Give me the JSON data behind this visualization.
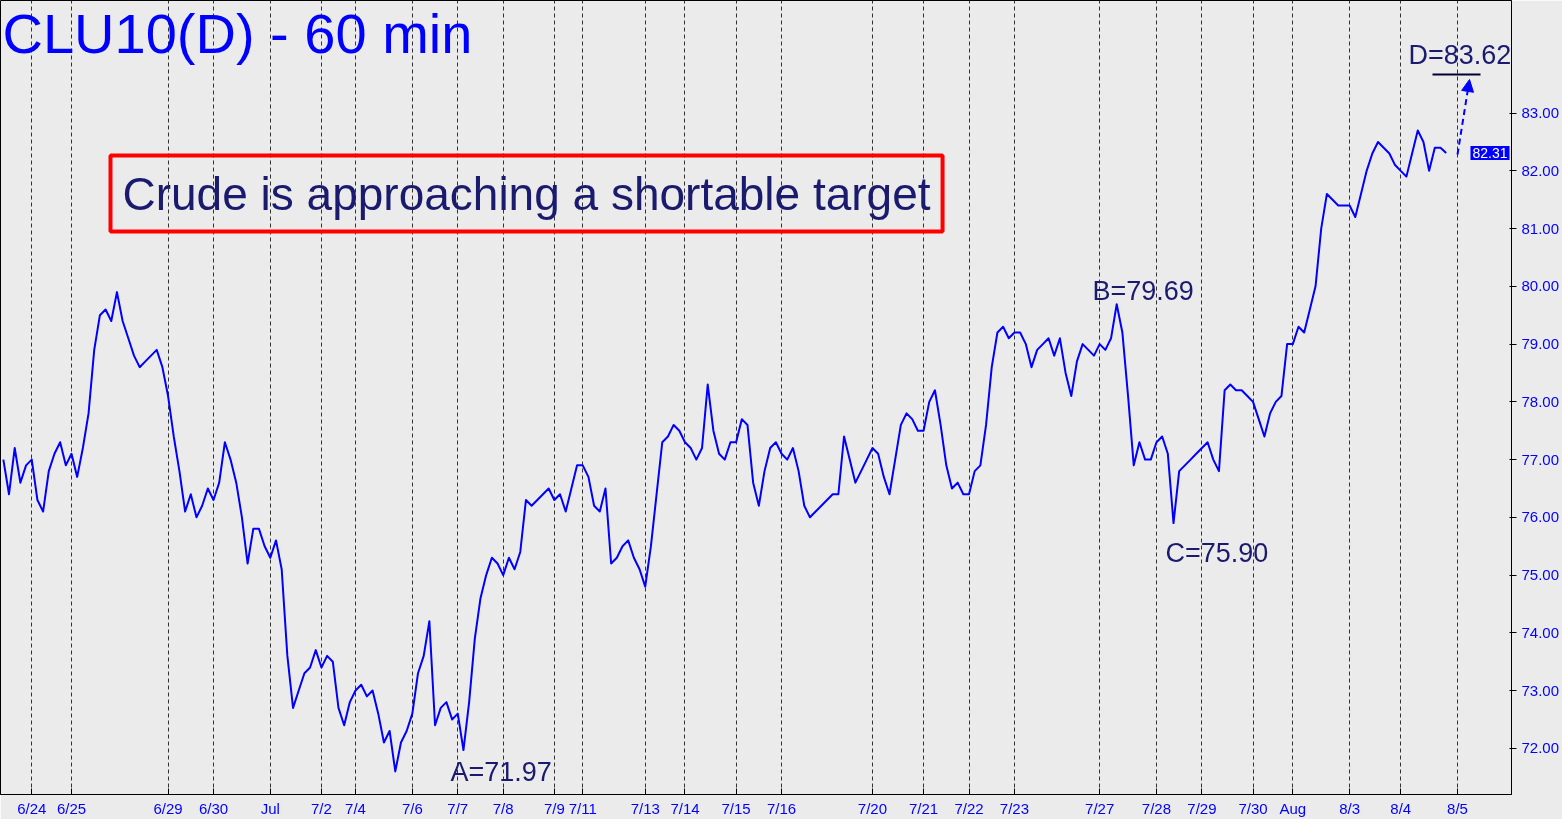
{
  "chart_data": {
    "type": "line",
    "title": "CLU10(D) - 60 min",
    "categories": [
      null,
      null,
      null,
      null,
      null,
      "6/24",
      null,
      null,
      null,
      null,
      null,
      null,
      "6/25",
      null,
      null,
      null,
      null,
      null,
      null,
      null,
      null,
      null,
      null,
      null,
      null,
      null,
      null,
      null,
      null,
      "6/29",
      null,
      null,
      null,
      null,
      null,
      null,
      null,
      "6/30",
      null,
      null,
      null,
      null,
      null,
      null,
      null,
      null,
      null,
      "Jul",
      null,
      null,
      null,
      null,
      null,
      null,
      null,
      null,
      "7/2",
      null,
      null,
      null,
      null,
      null,
      "7/4",
      null,
      null,
      null,
      null,
      null,
      null,
      null,
      null,
      null,
      "7/6",
      null,
      null,
      null,
      null,
      null,
      null,
      null,
      "7/7",
      null,
      null,
      null,
      null,
      null,
      null,
      null,
      "7/8",
      null,
      null,
      null,
      null,
      null,
      null,
      null,
      null,
      "7/9",
      null,
      null,
      null,
      null,
      "7/11",
      null,
      null,
      null,
      null,
      null,
      null,
      null,
      null,
      null,
      null,
      "7/13",
      null,
      null,
      null,
      null,
      null,
      null,
      "7/14",
      null,
      null,
      null,
      null,
      null,
      null,
      null,
      null,
      "7/15",
      null,
      null,
      null,
      null,
      null,
      null,
      null,
      "7/16",
      null,
      null,
      null,
      null,
      null,
      null,
      null,
      null,
      null,
      null,
      null,
      null,
      null,
      null,
      null,
      "7/20",
      null,
      null,
      null,
      null,
      null,
      null,
      null,
      null,
      "7/21",
      null,
      null,
      null,
      null,
      null,
      null,
      null,
      "7/22",
      null,
      null,
      null,
      null,
      null,
      null,
      null,
      "7/23",
      null,
      null,
      null,
      null,
      null,
      null,
      null,
      null,
      null,
      null,
      null,
      null,
      null,
      null,
      "7/27",
      null,
      null,
      null,
      null,
      null,
      null,
      null,
      null,
      null,
      "7/28",
      null,
      null,
      null,
      null,
      null,
      null,
      null,
      "7/29",
      null,
      null,
      null,
      null,
      null,
      null,
      null,
      null,
      "7/30",
      null,
      null,
      null,
      null,
      null,
      null,
      "Aug",
      null,
      null,
      null,
      null,
      null,
      null,
      null,
      null,
      null,
      "8/3",
      null,
      null,
      null,
      null,
      null,
      null,
      null,
      null,
      "8/4",
      null,
      null,
      null,
      null,
      null,
      null,
      null,
      null,
      null,
      "8/5",
      null,
      null,
      null,
      null,
      null,
      null,
      null,
      null,
      null
    ],
    "ylim": [
      71.2,
      84.95
    ],
    "yticks": [
      {
        "value": 72,
        "label": "72.00"
      },
      {
        "value": 73,
        "label": "73.00"
      },
      {
        "value": 74,
        "label": "74.00"
      },
      {
        "value": 75,
        "label": "75.00"
      },
      {
        "value": 76,
        "label": "76.00"
      },
      {
        "value": 77,
        "label": "77.00"
      },
      {
        "value": 78,
        "label": "78.00"
      },
      {
        "value": 79,
        "label": "79.00"
      },
      {
        "value": 80,
        "label": "80.00"
      },
      {
        "value": 81,
        "label": "81.00"
      },
      {
        "value": 82,
        "label": "82.00"
      },
      {
        "value": 83,
        "label": "83.00"
      }
    ],
    "grid": "x",
    "series": [
      {
        "color": "#0000ff",
        "values": [
          77.0,
          76.4,
          77.2,
          76.6,
          76.9,
          77.0,
          76.3,
          76.1,
          76.8,
          77.1,
          77.3,
          76.9,
          77.1,
          76.7,
          77.2,
          77.8,
          78.9,
          79.5,
          79.6,
          79.4,
          79.9,
          79.4,
          79.1,
          78.8,
          78.6,
          78.7,
          78.8,
          78.9,
          78.6,
          78.1,
          77.4,
          76.8,
          76.1,
          76.4,
          76.0,
          76.2,
          76.5,
          76.3,
          76.6,
          77.3,
          77.0,
          76.6,
          76.0,
          75.2,
          75.8,
          75.8,
          75.5,
          75.3,
          75.6,
          75.1,
          73.6,
          72.7,
          73.0,
          73.3,
          73.4,
          73.7,
          73.4,
          73.6,
          73.5,
          72.7,
          72.4,
          72.8,
          73.0,
          73.1,
          72.9,
          73.0,
          72.6,
          72.1,
          72.3,
          71.6,
          72.1,
          72.3,
          72.6,
          73.3,
          73.6,
          74.2,
          72.4,
          72.7,
          72.8,
          72.5,
          72.6,
          71.97,
          72.8,
          73.9,
          74.6,
          75.0,
          75.3,
          75.2,
          75.0,
          75.3,
          75.1,
          75.4,
          76.3,
          76.2,
          76.3,
          76.4,
          76.5,
          76.3,
          76.4,
          76.1,
          76.5,
          76.9,
          76.9,
          76.7,
          76.2,
          76.1,
          76.5,
          75.2,
          75.3,
          75.5,
          75.6,
          75.3,
          75.1,
          74.8,
          75.5,
          76.4,
          77.3,
          77.4,
          77.6,
          77.5,
          77.3,
          77.2,
          77.0,
          77.2,
          78.3,
          77.5,
          77.1,
          77.0,
          77.3,
          77.3,
          77.7,
          77.6,
          76.6,
          76.2,
          76.8,
          77.2,
          77.3,
          77.1,
          77.0,
          77.2,
          76.8,
          76.2,
          76.0,
          76.1,
          76.2,
          76.3,
          76.4,
          76.4,
          77.4,
          77.0,
          76.6,
          76.8,
          77.0,
          77.2,
          77.1,
          76.7,
          76.4,
          77.0,
          77.6,
          77.8,
          77.7,
          77.5,
          77.5,
          78.0,
          78.2,
          77.6,
          76.9,
          76.5,
          76.6,
          76.4,
          76.4,
          76.8,
          76.9,
          77.6,
          78.6,
          79.2,
          79.3,
          79.1,
          79.2,
          79.2,
          79.0,
          78.6,
          78.9,
          79.0,
          79.1,
          78.8,
          79.1,
          78.5,
          78.1,
          78.7,
          79.0,
          78.9,
          78.8,
          79.0,
          78.9,
          79.1,
          79.69,
          79.2,
          78.1,
          76.9,
          77.3,
          77.0,
          77.0,
          77.3,
          77.4,
          77.1,
          75.9,
          76.8,
          76.9,
          77.0,
          77.1,
          77.2,
          77.3,
          77.0,
          76.8,
          78.2,
          78.3,
          78.2,
          78.2,
          78.1,
          78.0,
          77.7,
          77.4,
          77.8,
          78.0,
          78.1,
          79.0,
          79.0,
          79.3,
          79.2,
          79.6,
          80.0,
          81.0,
          81.6,
          81.5,
          81.4,
          81.4,
          81.4,
          81.2,
          81.6,
          82.0,
          82.3,
          82.5,
          82.4,
          82.3,
          82.1,
          82.0,
          81.9,
          82.3,
          82.7,
          82.5,
          82.0,
          82.4,
          82.4,
          82.31,
          null,
          null,
          null,
          null,
          null,
          null,
          null,
          null,
          null,
          null,
          null
        ]
      }
    ],
    "annotations": [
      "Crude is approaching a shortable target",
      "82.31",
      "A=71.97",
      "B=79.69",
      "C=75.90",
      "D=83.62"
    ]
  }
}
